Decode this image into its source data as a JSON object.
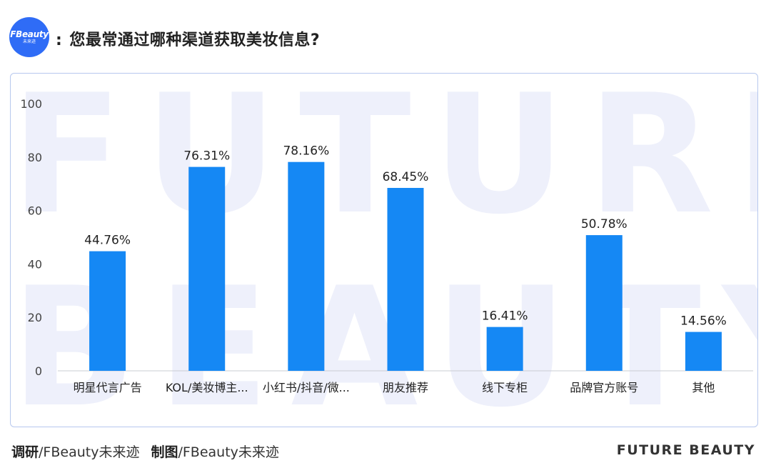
{
  "logo": {
    "line1": "FBeauty",
    "line2": "未来迹"
  },
  "header": {
    "colon": ":",
    "title": "您最常通过哪种渠道获取美妆信息?"
  },
  "watermark": {
    "line1": "FUTURE",
    "line2": "BEAUTY"
  },
  "chart_data": {
    "type": "bar",
    "categories": [
      "明星代言广告",
      "KOL/美妆博主...",
      "小红书/抖音/微...",
      "朋友推荐",
      "线下专柜",
      "品牌官方账号",
      "其他"
    ],
    "values": [
      44.76,
      76.31,
      78.16,
      68.45,
      16.41,
      50.78,
      14.56
    ],
    "data_labels": [
      "44.76%",
      "76.31%",
      "78.16%",
      "68.45%",
      "16.41%",
      "50.78%",
      "14.56%"
    ],
    "yticks": [
      "0",
      "20",
      "40",
      "60",
      "80",
      "100"
    ],
    "ylim": [
      0,
      100
    ],
    "bar_color": "#1588f4",
    "grid": false
  },
  "footer": {
    "survey_label": "调研",
    "survey_value": "/FBeauty未来迹",
    "chart_label": "制图",
    "chart_value": "/FBeauty未来迹",
    "brand": "FUTURE BEAUTY"
  }
}
